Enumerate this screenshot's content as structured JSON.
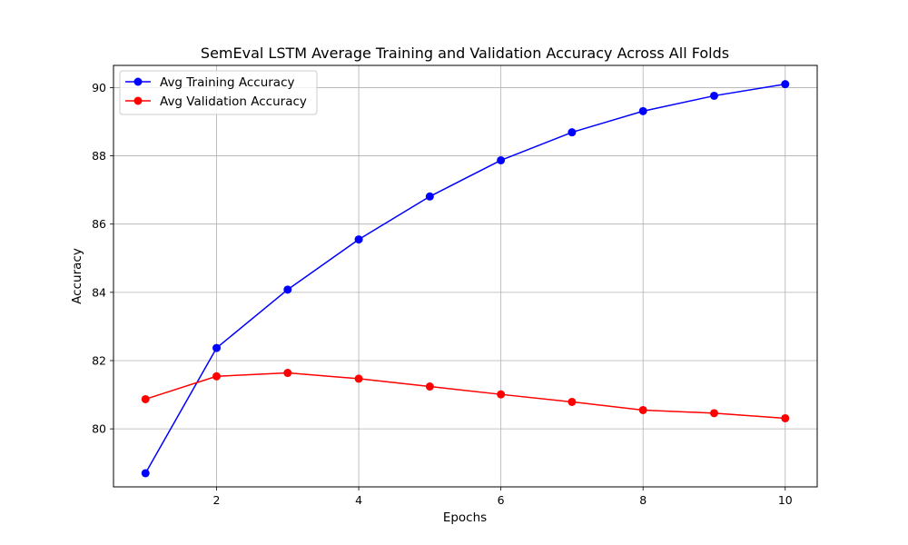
{
  "chart_data": {
    "type": "line",
    "title": "SemEval LSTM Average Training and Validation Accuracy Across All Folds",
    "xlabel": "Epochs",
    "ylabel": "Accuracy",
    "x": [
      1,
      2,
      3,
      4,
      5,
      6,
      7,
      8,
      9,
      10
    ],
    "xlim": [
      0.55,
      10.45
    ],
    "ylim": [
      78.3,
      90.65
    ],
    "xticks": [
      2,
      4,
      6,
      8,
      10
    ],
    "yticks": [
      80,
      82,
      84,
      86,
      88,
      90
    ],
    "xtick_labels": [
      "2",
      "4",
      "6",
      "8",
      "10"
    ],
    "ytick_labels": [
      "80",
      "82",
      "84",
      "86",
      "88",
      "90"
    ],
    "grid": true,
    "legend_position": "upper-left",
    "series": [
      {
        "name": "Avg Training Accuracy",
        "color": "#0000ff",
        "marker": "circle",
        "values": [
          78.7,
          82.37,
          84.08,
          85.55,
          86.81,
          87.87,
          88.69,
          89.31,
          89.76,
          90.1
        ]
      },
      {
        "name": "Avg Validation Accuracy",
        "color": "#ff0000",
        "marker": "circle",
        "values": [
          80.87,
          81.54,
          81.64,
          81.47,
          81.24,
          81.01,
          80.79,
          80.55,
          80.46,
          80.31
        ]
      }
    ]
  }
}
